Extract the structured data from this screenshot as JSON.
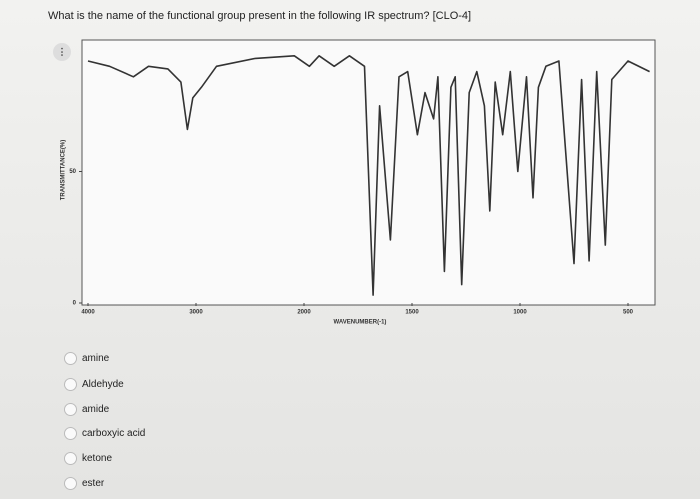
{
  "question": "What is the name of the functional group present in the following IR spectrum? [CLO-4]",
  "chart_data": {
    "type": "line",
    "xlabel": "WAVENUMBER(-1)",
    "ylabel": "TRANSMITTANCE(%)",
    "x": [
      4000,
      3800,
      3580,
      3440,
      3260,
      3140,
      3080,
      3030,
      2950,
      2810,
      2450,
      2090,
      1975,
      1930,
      1860,
      1790,
      1720,
      1680,
      1650,
      1600,
      1560,
      1520,
      1475,
      1440,
      1400,
      1380,
      1350,
      1320,
      1300,
      1270,
      1235,
      1200,
      1165,
      1140,
      1115,
      1080,
      1045,
      1010,
      970,
      940,
      915,
      880,
      820,
      750,
      715,
      680,
      645,
      605,
      575,
      500,
      400
    ],
    "series": [
      {
        "color": "#333333",
        "values": [
          92,
          90,
          86,
          90,
          89,
          84,
          66,
          78,
          82,
          90,
          93,
          94,
          90,
          94,
          90,
          94,
          90,
          3,
          75,
          24,
          86,
          88,
          64,
          80,
          70,
          86,
          12,
          82,
          86,
          7,
          80,
          88,
          75,
          35,
          84,
          64,
          88,
          50,
          86,
          40,
          82,
          90,
          92,
          15,
          85,
          16,
          88,
          22,
          85,
          92,
          88
        ]
      }
    ],
    "xlim": [
      4000,
      400
    ],
    "ylim": [
      0,
      100
    ],
    "xticks": [
      4000,
      3000,
      2000,
      1500,
      1000,
      500
    ],
    "yticks": [
      0,
      50
    ]
  },
  "options": [
    "amine",
    "Aldehyde",
    "amide",
    "carboxyic acid",
    "ketone",
    "ester"
  ]
}
